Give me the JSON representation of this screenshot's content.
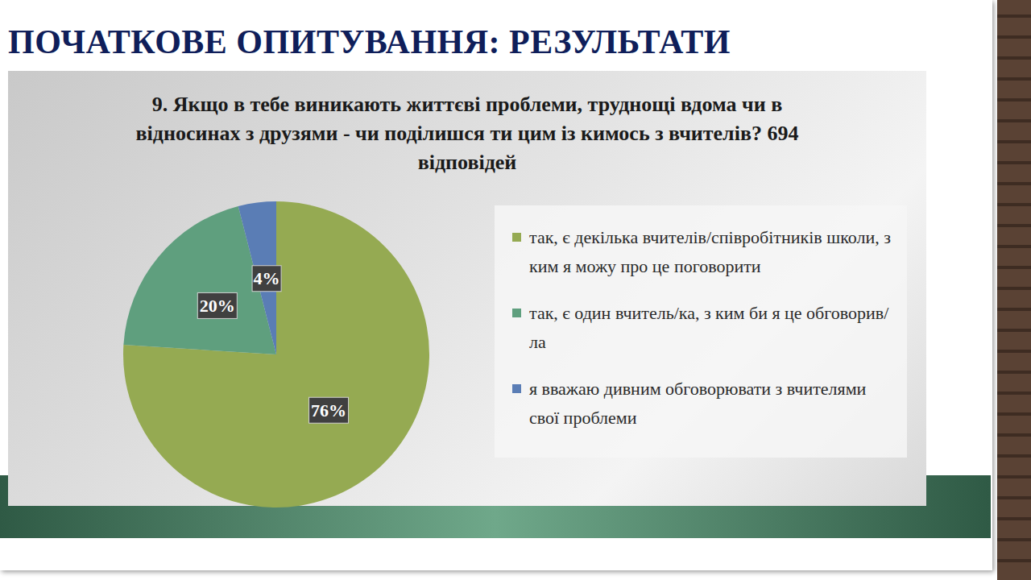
{
  "header": {
    "title": "ПОЧАТКОВЕ ОПИТУВАННЯ: РЕЗУЛЬТАТИ"
  },
  "chart_data": {
    "type": "pie",
    "title": "9. Якщо в тебе виникають життєві проблеми, труднощі вдома чи в відносинах з друзями - чи поділишся ти цим із кимось з вчителів? 694 відповідей",
    "categories": [
      "так, є декілька вчителів/співробітників школи, з ким я можу про це поговорити",
      "так, є один вчитель/ка, з ким би я це обговорив/ла",
      "я вважаю дивним обговорювати з вчителями свої проблеми"
    ],
    "values": [
      76,
      20,
      4
    ],
    "value_labels": [
      "76%",
      "20%",
      "4%"
    ],
    "colors": [
      "#95aa52",
      "#5f9f7e",
      "#5a7db5"
    ],
    "data_labels": true,
    "legend": "right"
  }
}
